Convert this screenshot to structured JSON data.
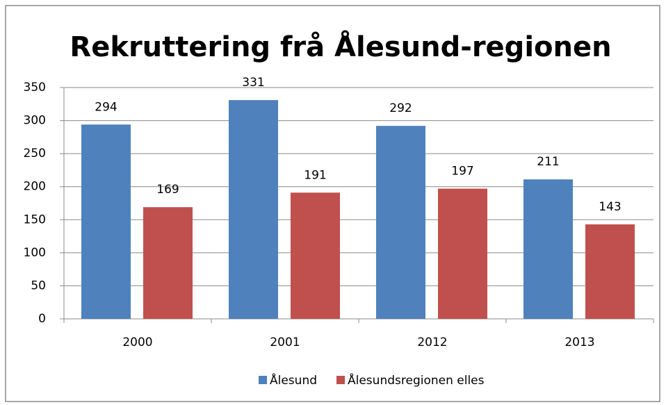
{
  "chart_data": {
    "type": "bar",
    "title": "Rekruttering frå Ålesund-regionen",
    "categories": [
      "2000",
      "2001",
      "2012",
      "2013"
    ],
    "series": [
      {
        "name": "Ålesund",
        "color": "#4f81bd",
        "values": [
          294,
          331,
          292,
          211
        ]
      },
      {
        "name": "Ålesundsregionen elles",
        "color": "#c0504d",
        "values": [
          169,
          191,
          197,
          143
        ]
      }
    ],
    "ylim": [
      0,
      350
    ],
    "yticks": [
      0,
      50,
      100,
      150,
      200,
      250,
      300,
      350
    ],
    "grid": true,
    "legend": "bottom"
  }
}
